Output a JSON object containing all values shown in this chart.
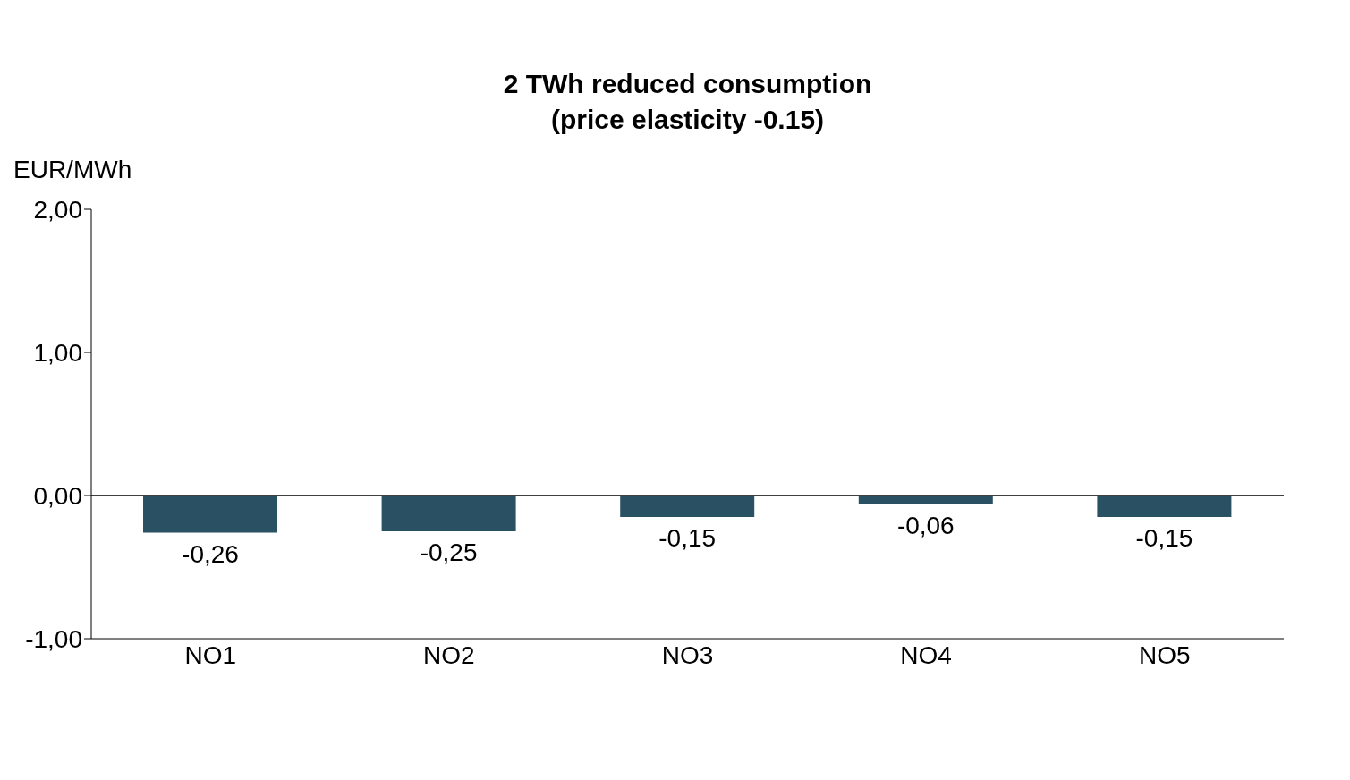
{
  "chart_data": {
    "type": "bar",
    "title": "2 TWh reduced consumption",
    "subtitle": "(price elasticity -0.15)",
    "ylabel": "EUR/MWh",
    "categories": [
      "NO1",
      "NO2",
      "NO3",
      "NO4",
      "NO5"
    ],
    "values": [
      -0.26,
      -0.25,
      -0.15,
      -0.06,
      -0.15
    ],
    "value_labels": [
      "-0,26",
      "-0,25",
      "-0,15",
      "-0,06",
      "-0,15"
    ],
    "color": "#2a5064",
    "ylim": [
      -1,
      2
    ],
    "yticks": [
      {
        "value": -1,
        "label": "-1,00"
      },
      {
        "value": 0,
        "label": "0,00"
      },
      {
        "value": 1,
        "label": "1,00"
      },
      {
        "value": 2,
        "label": "2,00"
      }
    ],
    "ref_lines": [
      {
        "axis": "y",
        "value": 0
      }
    ],
    "grid": false,
    "legend": false
  }
}
